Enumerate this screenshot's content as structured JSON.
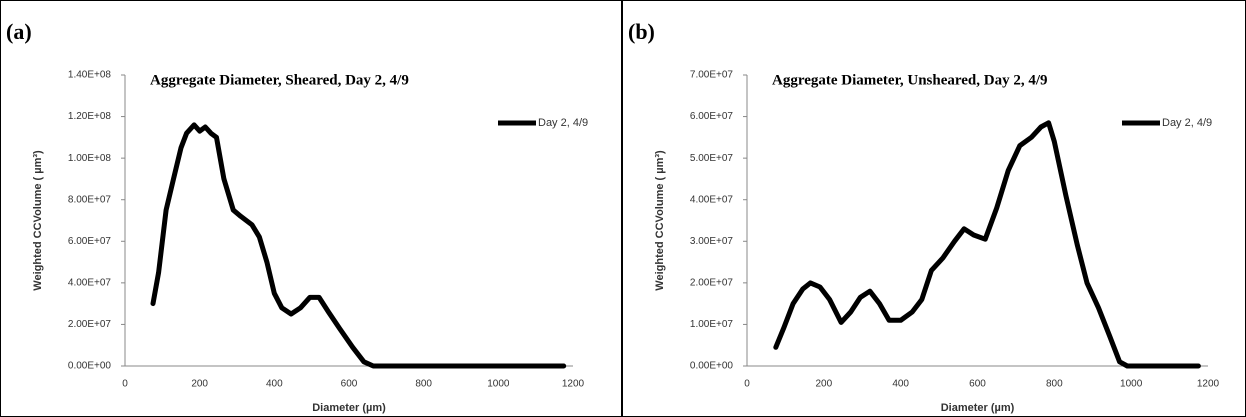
{
  "chart_data": [
    {
      "type": "line",
      "panel_label": "(a)",
      "title": "Aggregate Diameter, Sheared, Day 2, 4/9",
      "x_label": "Diameter (µm)",
      "y_label": "Weighted CCVolume ( µm³)",
      "legend": "upper right",
      "x": [
        75,
        90,
        110,
        130,
        150,
        165,
        185,
        200,
        215,
        230,
        245,
        265,
        290,
        310,
        340,
        360,
        380,
        400,
        420,
        445,
        470,
        495,
        520,
        545,
        575,
        610,
        640,
        665,
        700,
        800,
        900,
        1000,
        1100,
        1175
      ],
      "series": [
        {
          "name": "Day 2, 4/9",
          "color": "#000000",
          "values": [
            30000000,
            45000000,
            75000000,
            90000000,
            105000000,
            112000000,
            116000000,
            113000000,
            115000000,
            112000000,
            110000000,
            90000000,
            75000000,
            72000000,
            68000000,
            62000000,
            50000000,
            35000000,
            28000000,
            25000000,
            28000000,
            33000000,
            33000000,
            26000000,
            18000000,
            9000000,
            2000000,
            0,
            0,
            0,
            0,
            0,
            0,
            0
          ]
        }
      ],
      "xlim": [
        0,
        1200
      ],
      "xticks": [
        0,
        200,
        400,
        600,
        800,
        1000,
        1200
      ],
      "ylim": [
        0,
        140000000
      ],
      "yticks": [
        {
          "value": 0,
          "label": "0.00E+00"
        },
        {
          "value": 20000000,
          "label": "2.00E+07"
        },
        {
          "value": 40000000,
          "label": "4.00E+07"
        },
        {
          "value": 60000000,
          "label": "6.00E+07"
        },
        {
          "value": 80000000,
          "label": "8.00E+07"
        },
        {
          "value": 100000000,
          "label": "1.00E+08"
        },
        {
          "value": 120000000,
          "label": "1.20E+08"
        },
        {
          "value": 140000000,
          "label": "1.40E+08"
        }
      ]
    },
    {
      "type": "line",
      "panel_label": "(b)",
      "title": "Aggregate Diameter, Unsheared, Day 2, 4/9",
      "x_label": "Diameter (µm)",
      "y_label": "Weighted CCVolume ( µm³)",
      "legend": "upper right",
      "x": [
        75,
        95,
        120,
        145,
        165,
        190,
        215,
        245,
        270,
        295,
        320,
        345,
        370,
        400,
        430,
        455,
        480,
        510,
        540,
        565,
        590,
        620,
        650,
        680,
        710,
        740,
        765,
        785,
        800,
        830,
        860,
        885,
        915,
        945,
        970,
        990,
        1035,
        1100,
        1175
      ],
      "series": [
        {
          "name": "Day 2, 4/9",
          "color": "#000000",
          "values": [
            4500000,
            9000000,
            15000000,
            18500000,
            20000000,
            19000000,
            16000000,
            10500000,
            13000000,
            16500000,
            18000000,
            15000000,
            11000000,
            11000000,
            13000000,
            16000000,
            23000000,
            26000000,
            30000000,
            33000000,
            31500000,
            30500000,
            38000000,
            47000000,
            53000000,
            55000000,
            57500000,
            58500000,
            54000000,
            41000000,
            29000000,
            20000000,
            14000000,
            7000000,
            1000000,
            0,
            0,
            0,
            0
          ]
        }
      ],
      "xlim": [
        0,
        1200
      ],
      "xticks": [
        0,
        200,
        400,
        600,
        800,
        1000,
        1200
      ],
      "ylim": [
        0,
        70000000
      ],
      "yticks": [
        {
          "value": 0,
          "label": "0.00E+00"
        },
        {
          "value": 10000000,
          "label": "1.00E+07"
        },
        {
          "value": 20000000,
          "label": "2.00E+07"
        },
        {
          "value": 30000000,
          "label": "3.00E+07"
        },
        {
          "value": 40000000,
          "label": "4.00E+07"
        },
        {
          "value": 50000000,
          "label": "5.00E+07"
        },
        {
          "value": 60000000,
          "label": "6.00E+07"
        },
        {
          "value": 70000000,
          "label": "7.00E+07"
        }
      ]
    }
  ]
}
